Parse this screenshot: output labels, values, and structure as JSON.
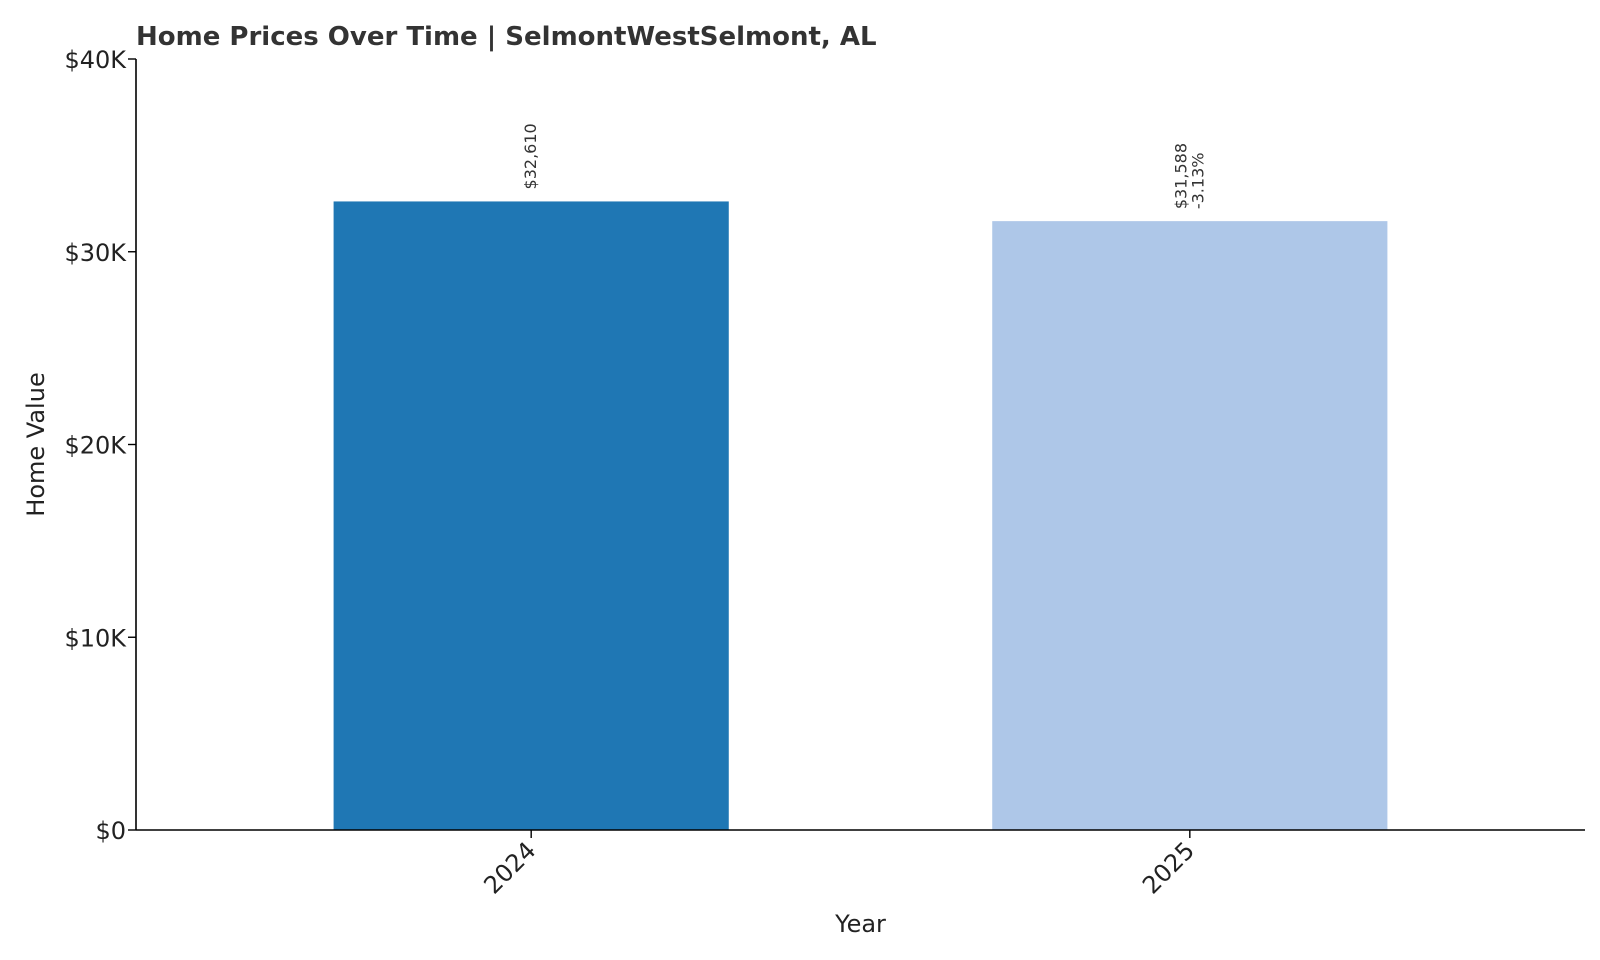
{
  "chart_data": {
    "type": "bar",
    "title": "Home Prices Over Time | SelmontWestSelmont, AL",
    "xlabel": "Year",
    "ylabel": "Home Value",
    "categories": [
      "2024",
      "2025"
    ],
    "values": [
      32610,
      31588
    ],
    "data_labels": [
      [
        "$32,610"
      ],
      [
        "$31,588",
        "-3.13%"
      ]
    ],
    "bar_colors": [
      "#1f77b4",
      "#aec7e8"
    ],
    "ylim": [
      0,
      40000
    ],
    "yticks": [
      0,
      10000,
      20000,
      30000,
      40000
    ],
    "ytick_labels": [
      "$0",
      "$10K",
      "$20K",
      "$30K",
      "$40K"
    ],
    "grid": false,
    "legend": "none"
  }
}
